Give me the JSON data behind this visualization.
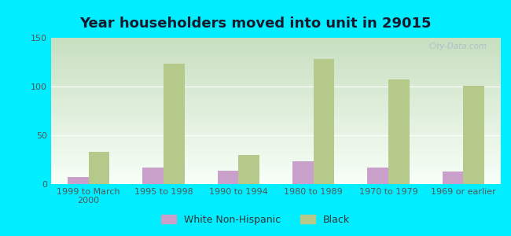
{
  "title": "Year householders moved into unit in 29015",
  "categories": [
    "1999 to March\n2000",
    "1995 to 1998",
    "1990 to 1994",
    "1980 to 1989",
    "1970 to 1979",
    "1969 or earlier"
  ],
  "white_values": [
    7,
    17,
    14,
    23,
    17,
    13
  ],
  "black_values": [
    33,
    123,
    30,
    128,
    107,
    101
  ],
  "white_color": "#c9a0c9",
  "black_color": "#b5c98a",
  "background_color": "#00eeff",
  "grad_top": "#c8dfc0",
  "grad_bottom": "#f8fff8",
  "ylim": [
    0,
    150
  ],
  "yticks": [
    0,
    50,
    100,
    150
  ],
  "bar_width": 0.28,
  "title_fontsize": 13,
  "tick_fontsize": 8,
  "legend_fontsize": 9,
  "watermark": "City-Data.com"
}
